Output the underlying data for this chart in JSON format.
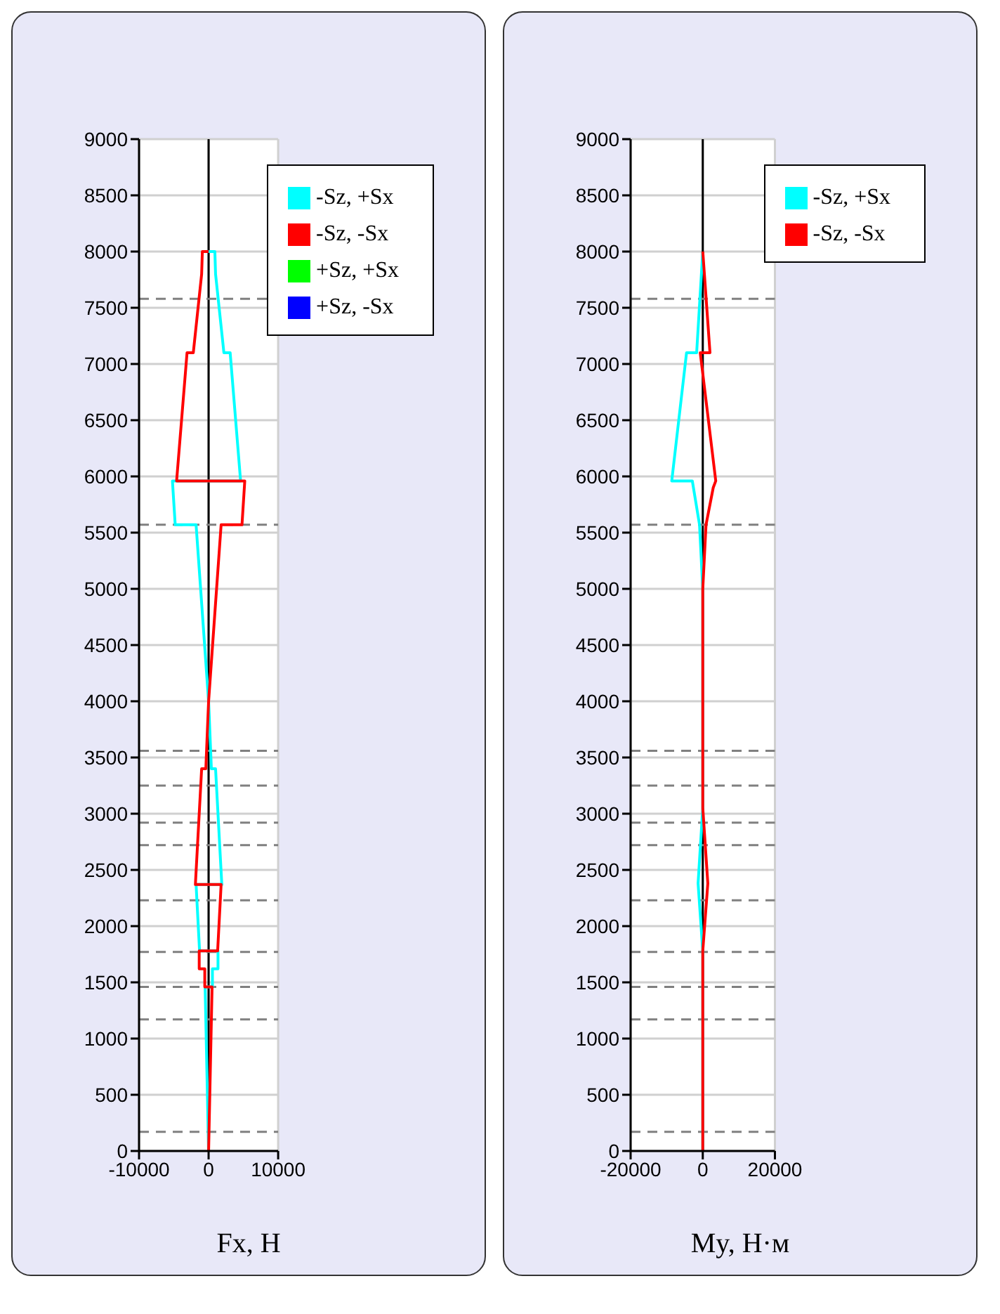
{
  "chart_data": [
    {
      "type": "line",
      "xlabel": "Fx, Н",
      "xlim": [
        -10000,
        10000
      ],
      "xticks": [
        -10000,
        0,
        10000
      ],
      "ylim": [
        0,
        9000
      ],
      "yticks": [
        0,
        500,
        1000,
        1500,
        2000,
        2500,
        3000,
        3500,
        4000,
        4500,
        5000,
        5500,
        6000,
        6500,
        7000,
        7500,
        8000,
        8500,
        9000
      ],
      "grid": true,
      "legend": "top right",
      "marker": "none",
      "line_style": "solid",
      "series": [
        {
          "name": "-Sz, +Sx",
          "color": "#00ffff",
          "x": [
            0,
            900,
            1000,
            2200,
            3100,
            4600,
            -5200,
            -4800,
            -1800,
            0,
            400,
            1000,
            1900,
            -1800,
            -1300,
            1350,
            1350,
            550,
            550,
            -500,
            0
          ],
          "values": [
            8000,
            8000,
            7800,
            7100,
            7100,
            5960,
            5960,
            5570,
            5570,
            4000,
            3400,
            3400,
            2370,
            2370,
            1780,
            1780,
            1620,
            1620,
            1460,
            1460,
            0
          ]
        },
        {
          "name": "-Sz, -Sx",
          "color": "#ff0000",
          "x": [
            0,
            -900,
            -1000,
            -2200,
            -3100,
            -4600,
            5200,
            4800,
            1800,
            0,
            -400,
            -1000,
            -1900,
            1800,
            1300,
            -1350,
            -1350,
            -550,
            -550,
            500,
            0
          ],
          "values": [
            8000,
            8000,
            7800,
            7100,
            7100,
            5960,
            5960,
            5570,
            5570,
            4000,
            3400,
            3400,
            2370,
            2370,
            1780,
            1780,
            1620,
            1620,
            1460,
            1460,
            0
          ]
        },
        {
          "name": "+Sz, +Sx",
          "color": "#00ff00",
          "x": [
            null
          ],
          "values": [
            null
          ]
        },
        {
          "name": "+Sz, -Sx",
          "color": "#0000ff",
          "x": [
            null
          ],
          "values": [
            null
          ]
        }
      ],
      "ref_lines": [
        {
          "axis": "x",
          "value": 0,
          "color": "#000000",
          "line_style": "solid"
        },
        {
          "axis": "y",
          "value": 7580,
          "color": "#808080",
          "line_style": "dashed"
        },
        {
          "axis": "y",
          "value": 5570,
          "color": "#808080",
          "line_style": "dashed"
        },
        {
          "axis": "y",
          "value": 3560,
          "color": "#808080",
          "line_style": "dashed"
        },
        {
          "axis": "y",
          "value": 3250,
          "color": "#808080",
          "line_style": "dashed"
        },
        {
          "axis": "y",
          "value": 2920,
          "color": "#808080",
          "line_style": "dashed"
        },
        {
          "axis": "y",
          "value": 2720,
          "color": "#808080",
          "line_style": "dashed"
        },
        {
          "axis": "y",
          "value": 2230,
          "color": "#808080",
          "line_style": "dashed"
        },
        {
          "axis": "y",
          "value": 1770,
          "color": "#808080",
          "line_style": "dashed"
        },
        {
          "axis": "y",
          "value": 1460,
          "color": "#808080",
          "line_style": "dashed"
        },
        {
          "axis": "y",
          "value": 1170,
          "color": "#808080",
          "line_style": "dashed"
        },
        {
          "axis": "y",
          "value": 170,
          "color": "#808080",
          "line_style": "dashed"
        }
      ]
    },
    {
      "type": "line",
      "xlabel": "My, Н·м",
      "xlim": [
        -20000,
        20000
      ],
      "xticks": [
        -20000,
        0,
        20000
      ],
      "ylim": [
        0,
        9000
      ],
      "yticks": [
        0,
        500,
        1000,
        1500,
        2000,
        2500,
        3000,
        3500,
        4000,
        4500,
        5000,
        5500,
        6000,
        6500,
        7000,
        7500,
        8000,
        8500,
        9000
      ],
      "grid": true,
      "legend": "top right",
      "marker": "none",
      "line_style": "solid",
      "series": [
        {
          "name": "-Sz, +Sx",
          "color": "#00ffff",
          "x": [
            0,
            -1700,
            -4500,
            -8600,
            -2900,
            -900,
            0,
            0,
            -1300,
            0,
            0
          ],
          "values": [
            8000,
            7100,
            7100,
            5960,
            5960,
            5570,
            5000,
            3050,
            2380,
            1780,
            0
          ]
        },
        {
          "name": "-Sz, -Sx",
          "color": "#ff0000",
          "x": [
            0,
            2000,
            -700,
            3600,
            2900,
            900,
            0,
            0,
            1400,
            0,
            0
          ],
          "values": [
            8000,
            7100,
            7100,
            5960,
            5900,
            5570,
            5000,
            3050,
            2380,
            1780,
            0
          ]
        }
      ],
      "ref_lines": [
        {
          "axis": "x",
          "value": 0,
          "color": "#000000",
          "line_style": "solid"
        },
        {
          "axis": "y",
          "value": 7580,
          "color": "#808080",
          "line_style": "dashed"
        },
        {
          "axis": "y",
          "value": 5570,
          "color": "#808080",
          "line_style": "dashed"
        },
        {
          "axis": "y",
          "value": 3560,
          "color": "#808080",
          "line_style": "dashed"
        },
        {
          "axis": "y",
          "value": 3250,
          "color": "#808080",
          "line_style": "dashed"
        },
        {
          "axis": "y",
          "value": 2920,
          "color": "#808080",
          "line_style": "dashed"
        },
        {
          "axis": "y",
          "value": 2720,
          "color": "#808080",
          "line_style": "dashed"
        },
        {
          "axis": "y",
          "value": 2230,
          "color": "#808080",
          "line_style": "dashed"
        },
        {
          "axis": "y",
          "value": 1770,
          "color": "#808080",
          "line_style": "dashed"
        },
        {
          "axis": "y",
          "value": 1460,
          "color": "#808080",
          "line_style": "dashed"
        },
        {
          "axis": "y",
          "value": 1170,
          "color": "#808080",
          "line_style": "dashed"
        },
        {
          "axis": "y",
          "value": 170,
          "color": "#808080",
          "line_style": "dashed"
        }
      ]
    }
  ]
}
